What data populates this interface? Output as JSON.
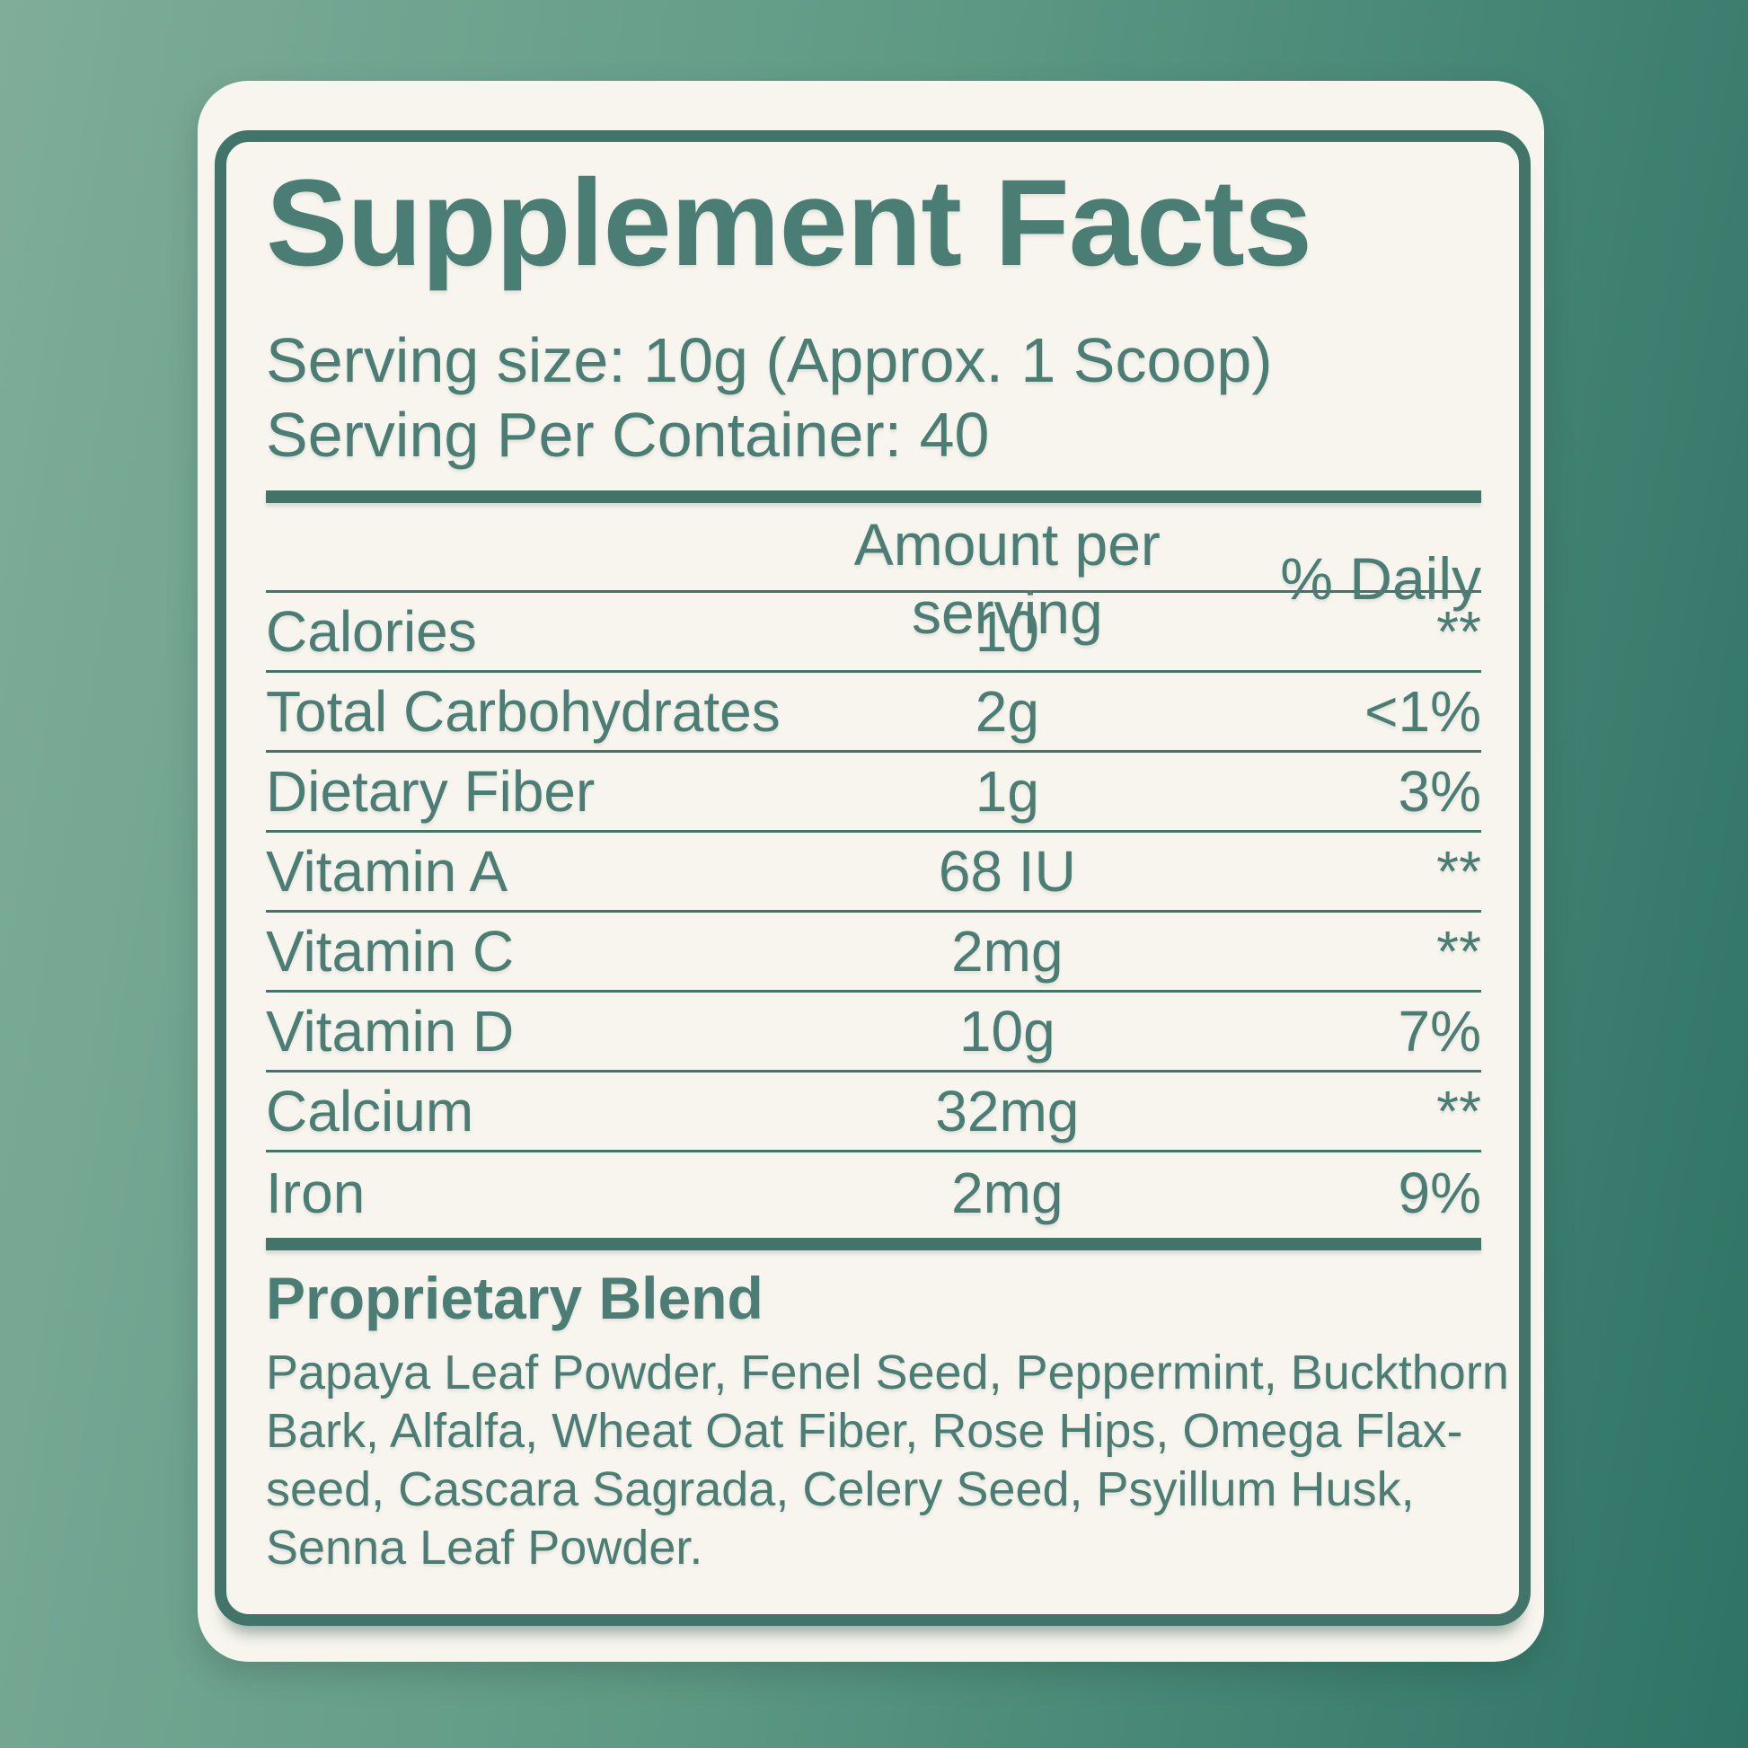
{
  "title": "Supplement Facts",
  "serving_size": "Serving size: 10g (Approx. 1 Scoop)",
  "servings_per_container": "Serving Per Container: 40",
  "table": {
    "amount_header": "Amount per serving",
    "daily_header": "% Daily",
    "rows": [
      {
        "name": "Calories",
        "amount": "10",
        "daily": "**"
      },
      {
        "name": "Total Carbohydrates",
        "amount": "2g",
        "daily": "<1%"
      },
      {
        "name": "Dietary Fiber",
        "amount": "1g",
        "daily": "3%"
      },
      {
        "name": "Vitamin A",
        "amount": "68 IU",
        "daily": "**"
      },
      {
        "name": "Vitamin C",
        "amount": "2mg",
        "daily": "**"
      },
      {
        "name": "Vitamin D",
        "amount": "10g",
        "daily": "7%"
      },
      {
        "name": "Calcium",
        "amount": "32mg",
        "daily": "**"
      },
      {
        "name": "Iron",
        "amount": "2mg",
        "daily": "9%"
      }
    ]
  },
  "blend": {
    "heading": "Proprietary Blend",
    "lines": [
      "Papaya Leaf Powder, Fenel Seed, Peppermint, Buckthorn",
      "Bark, Alfalfa, Wheat Oat Fiber, Rose Hips, Omega Flax-",
      "seed, Cascara Sagrada, Celery Seed, Psyillum Husk,",
      "Senna Leaf Powder."
    ]
  },
  "colors": {
    "bg_start": "#7fad99",
    "bg_end": "#2e7366",
    "card_bg": "#f8f5ee",
    "teal": "#4a7d73",
    "line": "#41756a"
  }
}
